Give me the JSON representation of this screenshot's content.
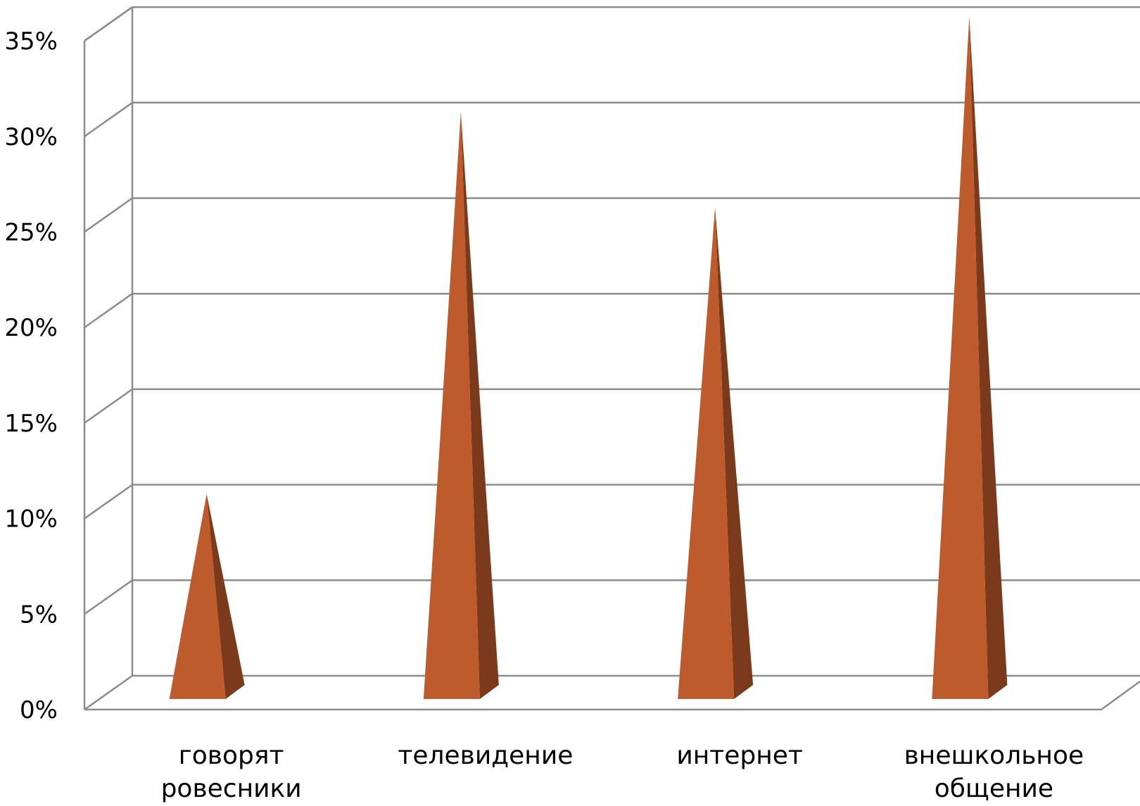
{
  "chart_data": {
    "type": "bar",
    "style": "3d-pyramid",
    "categories": [
      [
        "говорят",
        "ровесники"
      ],
      [
        "телевидение"
      ],
      [
        "интернет"
      ],
      [
        "внешкольное",
        "общение"
      ]
    ],
    "values": [
      10,
      30,
      25,
      35
    ],
    "unit": "%",
    "yticks": [
      "0%",
      "5%",
      "10%",
      "15%",
      "20%",
      "25%",
      "30%",
      "35%"
    ],
    "ylim": [
      0,
      35
    ],
    "grid": true,
    "legend": "none",
    "title": "",
    "xlabel": "",
    "ylabel": "",
    "colors": {
      "front": "#BE5B2C",
      "side": "#7A3A1B",
      "grid": "#8C8C8C"
    }
  }
}
